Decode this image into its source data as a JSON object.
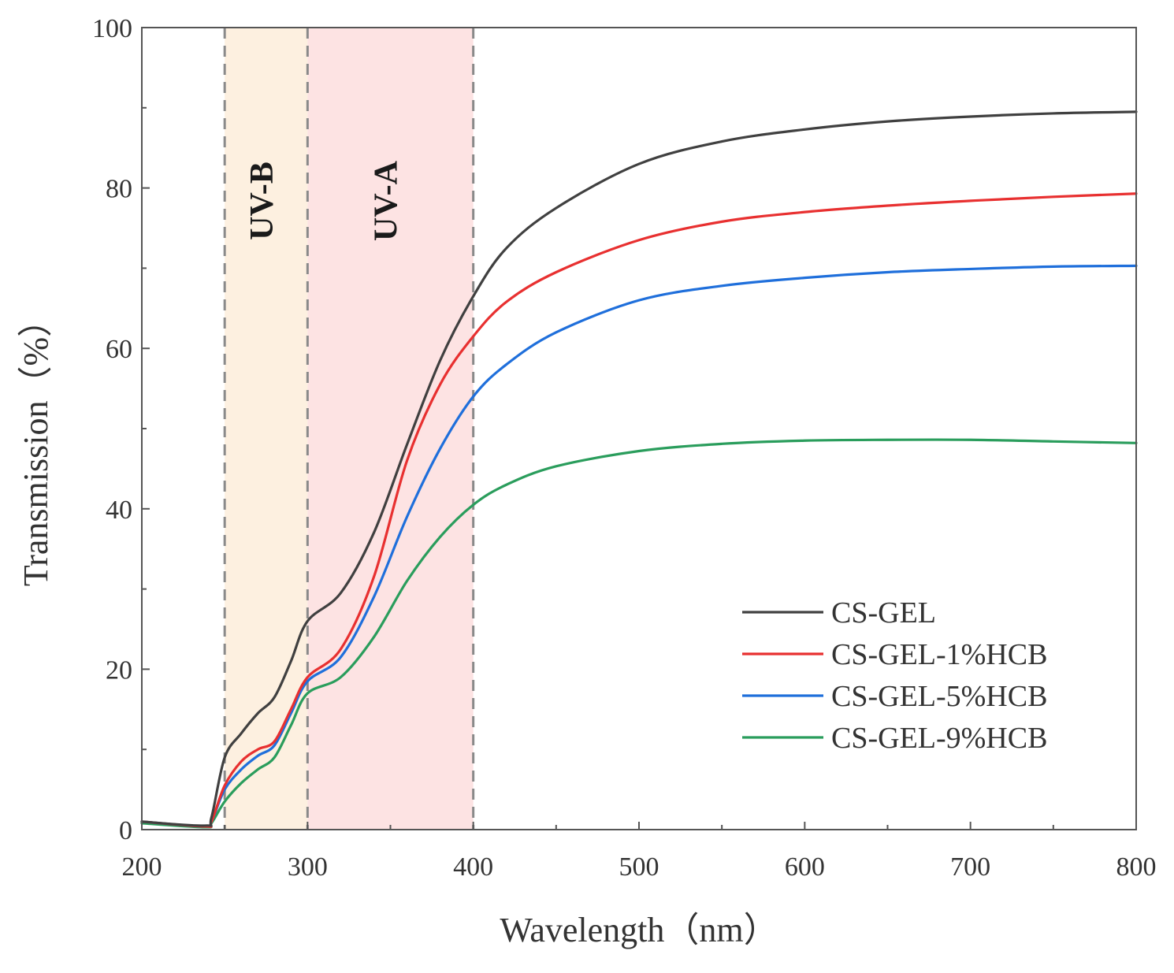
{
  "chart_data": {
    "type": "line",
    "title": "",
    "xlabel": "Wavelength（nm）",
    "ylabel": "Transmission（%）",
    "xlim": [
      200,
      800
    ],
    "ylim": [
      0,
      100
    ],
    "xticks": [
      200,
      300,
      400,
      500,
      600,
      700,
      800
    ],
    "yticks": [
      0,
      20,
      40,
      60,
      80,
      100
    ],
    "grid": false,
    "legend_position": "bottom-right",
    "bands": [
      {
        "label": "UV-B",
        "from": 250,
        "to": 300,
        "color": "#fdf0e0"
      },
      {
        "label": "UV-A",
        "from": 300,
        "to": 400,
        "color": "#fde3e3"
      }
    ],
    "x": [
      200,
      238,
      242,
      250,
      260,
      270,
      280,
      290,
      300,
      320,
      340,
      360,
      380,
      400,
      420,
      450,
      500,
      550,
      600,
      650,
      700,
      750,
      800
    ],
    "series": [
      {
        "name": "CS-GEL",
        "color": "#404040",
        "values": [
          1.0,
          0.5,
          1.5,
          9.0,
          12.0,
          14.5,
          16.5,
          21.0,
          26.0,
          29.5,
          37.0,
          48.0,
          58.5,
          66.5,
          72.5,
          77.5,
          83.0,
          85.8,
          87.3,
          88.3,
          88.9,
          89.3,
          89.5
        ]
      },
      {
        "name": "CS-GEL-1%HCB",
        "color": "#e83030",
        "values": [
          1.0,
          0.4,
          1.0,
          5.5,
          8.5,
          10.0,
          11.0,
          15.0,
          19.0,
          22.5,
          31.5,
          46.0,
          55.5,
          61.5,
          65.8,
          69.5,
          73.5,
          75.8,
          77.0,
          77.8,
          78.4,
          78.9,
          79.3
        ]
      },
      {
        "name": "CS-GEL-5%HCB",
        "color": "#1f6fdb",
        "values": [
          1.0,
          0.4,
          1.0,
          5.0,
          7.5,
          9.2,
          10.5,
          14.5,
          18.5,
          21.5,
          29.0,
          39.0,
          47.5,
          54.0,
          58.0,
          62.0,
          66.0,
          67.8,
          68.8,
          69.5,
          69.9,
          70.2,
          70.3
        ]
      },
      {
        "name": "CS-GEL-9%HCB",
        "color": "#2a9d5c",
        "values": [
          0.8,
          0.3,
          0.8,
          3.5,
          5.8,
          7.5,
          9.0,
          13.0,
          17.0,
          19.0,
          24.0,
          31.0,
          36.5,
          40.5,
          43.0,
          45.3,
          47.2,
          48.1,
          48.5,
          48.6,
          48.6,
          48.4,
          48.2
        ]
      }
    ]
  }
}
